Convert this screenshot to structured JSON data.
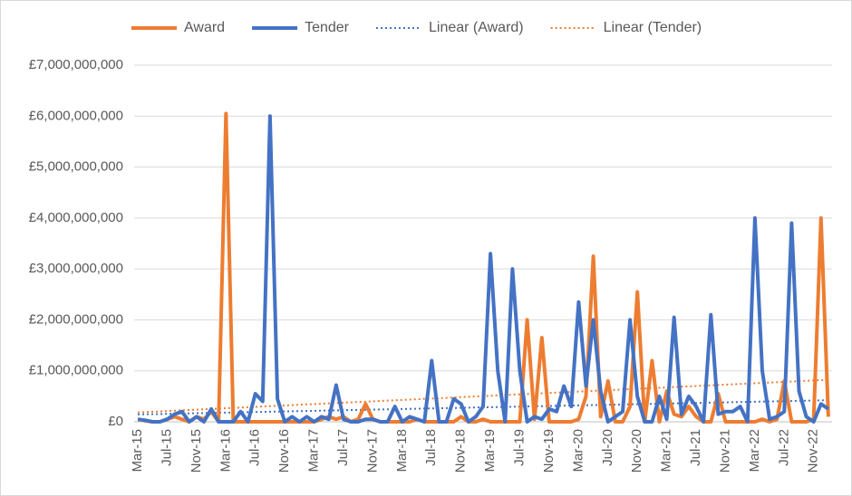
{
  "chart_data": {
    "type": "line",
    "categories": [
      "Mar-15",
      null,
      null,
      null,
      "Jul-15",
      null,
      null,
      null,
      "Nov-15",
      null,
      null,
      null,
      "Mar-16",
      null,
      null,
      null,
      "Jul-16",
      null,
      null,
      null,
      "Nov-16",
      null,
      null,
      null,
      "Mar-17",
      null,
      null,
      null,
      "Jul-17",
      null,
      null,
      null,
      "Nov-17",
      null,
      null,
      null,
      "Mar-18",
      null,
      null,
      null,
      "Jul-18",
      null,
      null,
      null,
      "Nov-18",
      null,
      null,
      null,
      "Mar-19",
      null,
      null,
      null,
      "Jul-19",
      null,
      null,
      null,
      "Nov-19",
      null,
      null,
      null,
      "Mar-20",
      null,
      null,
      null,
      "Jul-20",
      null,
      null,
      null,
      "Nov-20",
      null,
      null,
      null,
      "Mar-21",
      null,
      null,
      null,
      "Jul-21",
      null,
      null,
      null,
      "Nov-21",
      null,
      null,
      null,
      "Mar-22",
      null,
      null,
      null,
      "Jul-22",
      null,
      null,
      null,
      "Nov-22",
      null,
      null
    ],
    "series": [
      {
        "name": "Award",
        "color": "#ed7d31",
        "trendline": {
          "name": "Linear (Award)",
          "color": "#4472c4"
        },
        "values": [
          50000000.0,
          20000000.0,
          0,
          0,
          50000000.0,
          100000000.0,
          50000000.0,
          0,
          100000000.0,
          50000000.0,
          200000000.0,
          0,
          6050000000.0,
          0,
          0,
          0,
          0,
          0,
          0,
          0,
          0,
          0,
          0,
          0,
          0,
          50000000.0,
          100000000.0,
          50000000.0,
          100000000.0,
          0,
          50000000.0,
          350000000.0,
          50000000.0,
          0,
          0,
          0,
          0,
          0,
          50000000.0,
          0,
          0,
          0,
          0,
          0,
          100000000.0,
          0,
          0,
          50000000.0,
          0,
          0,
          0,
          0,
          0,
          2000000000.0,
          50000000.0,
          1650000000.0,
          0,
          0,
          0,
          0,
          50000000.0,
          500000000.0,
          3250000000.0,
          100000000.0,
          800000000.0,
          0,
          0,
          300000000.0,
          2550000000.0,
          0,
          1200000000.0,
          0,
          600000000.0,
          150000000.0,
          100000000.0,
          300000000.0,
          100000000.0,
          0,
          0,
          550000000.0,
          0,
          0,
          0,
          0,
          0,
          50000000.0,
          0,
          50000000.0,
          800000000.0,
          0,
          0,
          0,
          50000000.0,
          4000000000.0,
          100000000.0
        ]
      },
      {
        "name": "Tender",
        "color": "#4472c4",
        "trendline": {
          "name": "Linear (Tender)",
          "color": "#ed7d31"
        },
        "values": [
          50000000.0,
          30000000.0,
          0,
          0,
          50000000.0,
          150000000.0,
          200000000.0,
          0,
          100000000.0,
          0,
          250000000.0,
          0,
          0,
          0,
          200000000.0,
          0,
          550000000.0,
          400000000.0,
          6000000000.0,
          450000000.0,
          0,
          100000000.0,
          0,
          100000000.0,
          0,
          100000000.0,
          50000000.0,
          720000000.0,
          50000000.0,
          0,
          0,
          50000000.0,
          50000000.0,
          0,
          0,
          300000000.0,
          0,
          100000000.0,
          50000000.0,
          0,
          1200000000.0,
          0,
          0,
          450000000.0,
          350000000.0,
          0,
          100000000.0,
          300000000.0,
          3300000000.0,
          1000000000.0,
          0,
          3000000000.0,
          1000000000.0,
          0,
          100000000.0,
          50000000.0,
          250000000.0,
          200000000.0,
          700000000.0,
          300000000.0,
          2350000000.0,
          700000000.0,
          2000000000.0,
          600000000.0,
          0,
          100000000.0,
          200000000.0,
          2000000000.0,
          500000000.0,
          0,
          0,
          500000000.0,
          50000000.0,
          2050000000.0,
          150000000.0,
          500000000.0,
          300000000.0,
          0,
          2100000000.0,
          150000000.0,
          200000000.0,
          200000000.0,
          300000000.0,
          0,
          4000000000.0,
          1000000000.0,
          50000000.0,
          100000000.0,
          200000000.0,
          3900000000.0,
          600000000.0,
          100000000.0,
          0,
          350000000.0,
          250000000.0
        ]
      }
    ],
    "ylim": [
      0,
      7000000000.0
    ],
    "yticks": [
      {
        "value": 0,
        "label": "£0"
      },
      {
        "value": 1000000000.0,
        "label": "£1,000,000,000"
      },
      {
        "value": 2000000000.0,
        "label": "£2,000,000,000"
      },
      {
        "value": 3000000000.0,
        "label": "£3,000,000,000"
      },
      {
        "value": 4000000000.0,
        "label": "£4,000,000,000"
      },
      {
        "value": 5000000000.0,
        "label": "£5,000,000,000"
      },
      {
        "value": 6000000000.0,
        "label": "£6,000,000,000"
      },
      {
        "value": 7000000000.0,
        "label": "£7,000,000,000"
      }
    ],
    "grid": true,
    "legend": "top"
  }
}
